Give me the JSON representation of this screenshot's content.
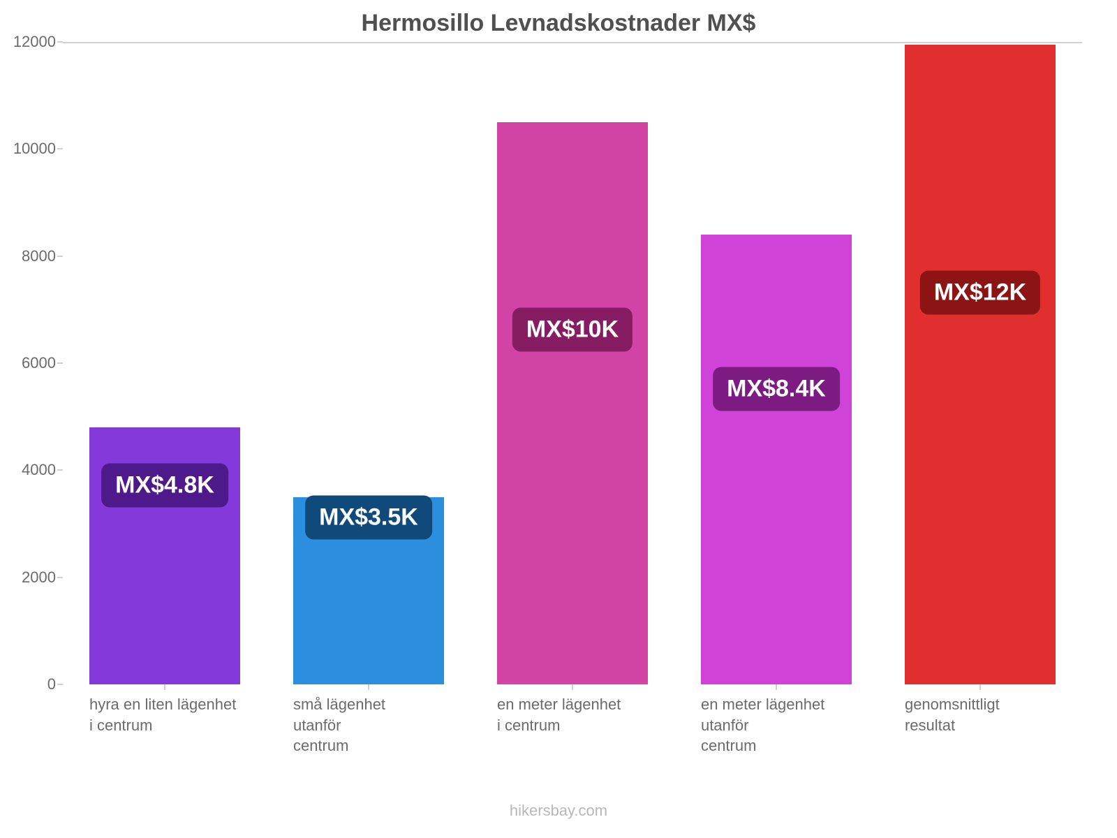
{
  "chart": {
    "type": "bar",
    "title": "Hermosillo Levnadskostnader MX$",
    "title_fontsize": 34,
    "title_color": "#505050",
    "background_color": "#ffffff",
    "axis_line_color": "#d0d0d0",
    "y": {
      "min": 0,
      "max": 12000,
      "tick_step": 2000,
      "ticks": [
        0,
        2000,
        4000,
        6000,
        8000,
        10000,
        12000
      ],
      "tick_labels": [
        "0",
        "2000",
        "4000",
        "6000",
        "8000",
        "10000",
        "12000"
      ],
      "label_fontsize": 22,
      "label_color": "#6b6b6b"
    },
    "x": {
      "label_fontsize": 22,
      "label_color": "#6b6b6b"
    },
    "bar_width": 0.74,
    "bars": [
      {
        "category": "hyra en liten lägenhet\ni centrum",
        "value": 4800,
        "display_value": "MX$4.8K",
        "color": "#843adb",
        "badge_bg": "#4e198a",
        "badge_top_value": 2900
      },
      {
        "category": "små lägenhet\nutanför\ncentrum",
        "value": 3500,
        "display_value": "MX$3.5K",
        "color": "#2c8edf",
        "badge_bg": "#0f4a7a",
        "badge_top_value": 2300
      },
      {
        "category": "en meter lägenhet\ni centrum",
        "value": 10500,
        "display_value": "MX$10K",
        "color": "#d143a4",
        "badge_bg": "#861c62",
        "badge_top_value": 5800
      },
      {
        "category": "en meter lägenhet\nutanför\ncentrum",
        "value": 8400,
        "display_value": "MX$8.4K",
        "color": "#d043d8",
        "badge_bg": "#7c1c82",
        "badge_top_value": 4700
      },
      {
        "category": "genomsnittligt\nresultat",
        "value": 11950,
        "display_value": "MX$12K",
        "color": "#e12f2f",
        "badge_bg": "#8d1414",
        "badge_top_value": 6500
      }
    ],
    "badge_fontsize": 34,
    "badge_text_color": "#ffffff",
    "badge_radius": 12,
    "footer": "hikersbay.com",
    "footer_color": "#b8b8b8",
    "footer_fontsize": 22
  }
}
